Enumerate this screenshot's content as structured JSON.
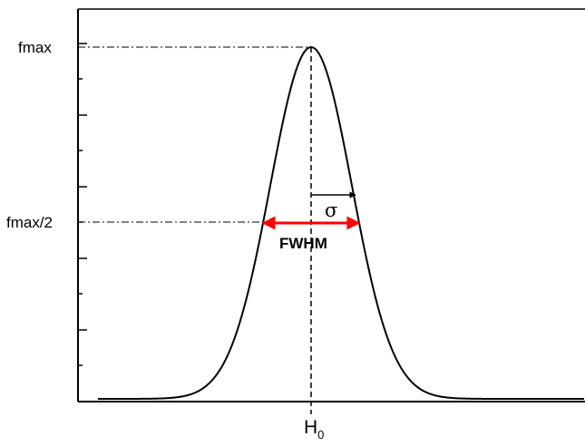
{
  "diagram": {
    "labels": {
      "fmax": "fmax",
      "fmax_half": "fmax/2",
      "fwhm": "FWHM",
      "sigma": "σ",
      "center_main": "H",
      "center_sub": "0"
    },
    "colors": {
      "curve": "#000000",
      "axes": "#000000",
      "fwhm_arrow": "#ff0000",
      "guides": "#000000"
    }
  }
}
